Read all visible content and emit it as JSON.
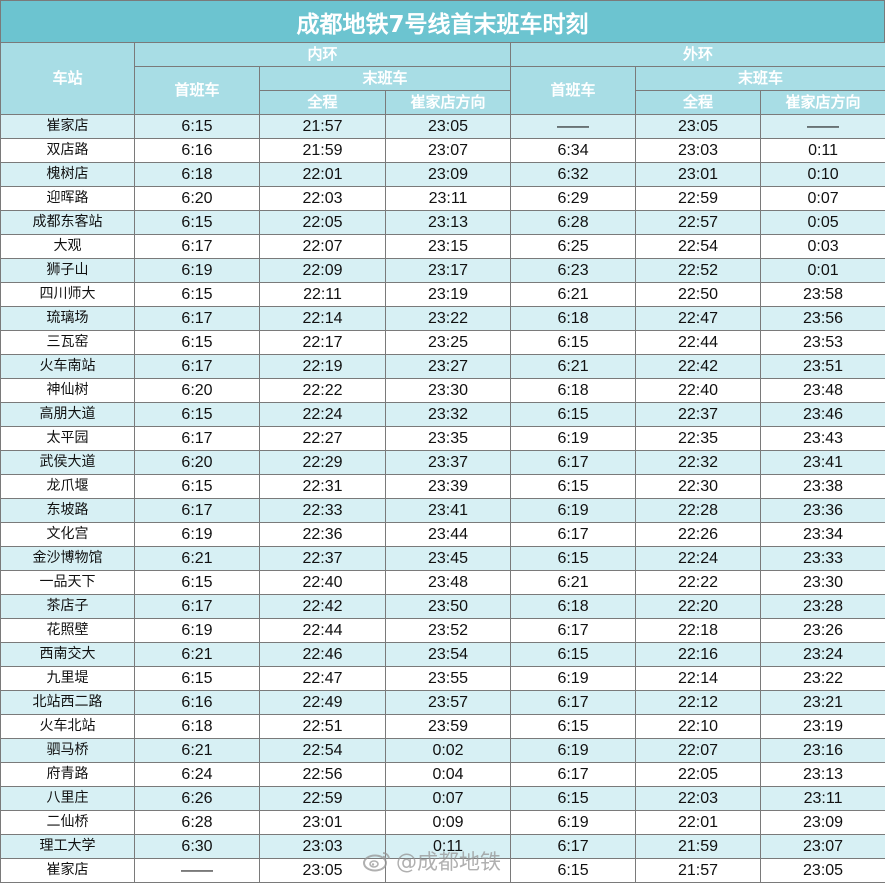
{
  "title": "成都地铁7号线首末班车时刻",
  "header": {
    "station": "车站",
    "inner": "内环",
    "outer": "外环",
    "first": "首班车",
    "last": "末班车",
    "full": "全程",
    "cuijiadian_dir": "崔家店方向"
  },
  "rows": [
    {
      "station": "崔家店",
      "in_first": "6:15",
      "in_full": "21:57",
      "in_dir": "23:05",
      "out_first": "——",
      "out_full": "23:05",
      "out_dir": "——"
    },
    {
      "station": "双店路",
      "in_first": "6:16",
      "in_full": "21:59",
      "in_dir": "23:07",
      "out_first": "6:34",
      "out_full": "23:03",
      "out_dir": "0:11"
    },
    {
      "station": "槐树店",
      "in_first": "6:18",
      "in_full": "22:01",
      "in_dir": "23:09",
      "out_first": "6:32",
      "out_full": "23:01",
      "out_dir": "0:10"
    },
    {
      "station": "迎晖路",
      "in_first": "6:20",
      "in_full": "22:03",
      "in_dir": "23:11",
      "out_first": "6:29",
      "out_full": "22:59",
      "out_dir": "0:07"
    },
    {
      "station": "成都东客站",
      "in_first": "6:15",
      "in_full": "22:05",
      "in_dir": "23:13",
      "out_first": "6:28",
      "out_full": "22:57",
      "out_dir": "0:05"
    },
    {
      "station": "大观",
      "in_first": "6:17",
      "in_full": "22:07",
      "in_dir": "23:15",
      "out_first": "6:25",
      "out_full": "22:54",
      "out_dir": "0:03"
    },
    {
      "station": "狮子山",
      "in_first": "6:19",
      "in_full": "22:09",
      "in_dir": "23:17",
      "out_first": "6:23",
      "out_full": "22:52",
      "out_dir": "0:01"
    },
    {
      "station": "四川师大",
      "in_first": "6:15",
      "in_full": "22:11",
      "in_dir": "23:19",
      "out_first": "6:21",
      "out_full": "22:50",
      "out_dir": "23:58"
    },
    {
      "station": "琉璃场",
      "in_first": "6:17",
      "in_full": "22:14",
      "in_dir": "23:22",
      "out_first": "6:18",
      "out_full": "22:47",
      "out_dir": "23:56"
    },
    {
      "station": "三瓦窑",
      "in_first": "6:15",
      "in_full": "22:17",
      "in_dir": "23:25",
      "out_first": "6:15",
      "out_full": "22:44",
      "out_dir": "23:53"
    },
    {
      "station": "火车南站",
      "in_first": "6:17",
      "in_full": "22:19",
      "in_dir": "23:27",
      "out_first": "6:21",
      "out_full": "22:42",
      "out_dir": "23:51"
    },
    {
      "station": "神仙树",
      "in_first": "6:20",
      "in_full": "22:22",
      "in_dir": "23:30",
      "out_first": "6:18",
      "out_full": "22:40",
      "out_dir": "23:48"
    },
    {
      "station": "高朋大道",
      "in_first": "6:15",
      "in_full": "22:24",
      "in_dir": "23:32",
      "out_first": "6:15",
      "out_full": "22:37",
      "out_dir": "23:46"
    },
    {
      "station": "太平园",
      "in_first": "6:17",
      "in_full": "22:27",
      "in_dir": "23:35",
      "out_first": "6:19",
      "out_full": "22:35",
      "out_dir": "23:43"
    },
    {
      "station": "武侯大道",
      "in_first": "6:20",
      "in_full": "22:29",
      "in_dir": "23:37",
      "out_first": "6:17",
      "out_full": "22:32",
      "out_dir": "23:41"
    },
    {
      "station": "龙爪堰",
      "in_first": "6:15",
      "in_full": "22:31",
      "in_dir": "23:39",
      "out_first": "6:15",
      "out_full": "22:30",
      "out_dir": "23:38"
    },
    {
      "station": "东坡路",
      "in_first": "6:17",
      "in_full": "22:33",
      "in_dir": "23:41",
      "out_first": "6:19",
      "out_full": "22:28",
      "out_dir": "23:36"
    },
    {
      "station": "文化宫",
      "in_first": "6:19",
      "in_full": "22:36",
      "in_dir": "23:44",
      "out_first": "6:17",
      "out_full": "22:26",
      "out_dir": "23:34"
    },
    {
      "station": "金沙博物馆",
      "in_first": "6:21",
      "in_full": "22:37",
      "in_dir": "23:45",
      "out_first": "6:15",
      "out_full": "22:24",
      "out_dir": "23:33"
    },
    {
      "station": "一品天下",
      "in_first": "6:15",
      "in_full": "22:40",
      "in_dir": "23:48",
      "out_first": "6:21",
      "out_full": "22:22",
      "out_dir": "23:30"
    },
    {
      "station": "茶店子",
      "in_first": "6:17",
      "in_full": "22:42",
      "in_dir": "23:50",
      "out_first": "6:18",
      "out_full": "22:20",
      "out_dir": "23:28"
    },
    {
      "station": "花照壁",
      "in_first": "6:19",
      "in_full": "22:44",
      "in_dir": "23:52",
      "out_first": "6:17",
      "out_full": "22:18",
      "out_dir": "23:26"
    },
    {
      "station": "西南交大",
      "in_first": "6:21",
      "in_full": "22:46",
      "in_dir": "23:54",
      "out_first": "6:15",
      "out_full": "22:16",
      "out_dir": "23:24"
    },
    {
      "station": "九里堤",
      "in_first": "6:15",
      "in_full": "22:47",
      "in_dir": "23:55",
      "out_first": "6:19",
      "out_full": "22:14",
      "out_dir": "23:22"
    },
    {
      "station": "北站西二路",
      "in_first": "6:16",
      "in_full": "22:49",
      "in_dir": "23:57",
      "out_first": "6:17",
      "out_full": "22:12",
      "out_dir": "23:21"
    },
    {
      "station": "火车北站",
      "in_first": "6:18",
      "in_full": "22:51",
      "in_dir": "23:59",
      "out_first": "6:15",
      "out_full": "22:10",
      "out_dir": "23:19"
    },
    {
      "station": "驷马桥",
      "in_first": "6:21",
      "in_full": "22:54",
      "in_dir": "0:02",
      "out_first": "6:19",
      "out_full": "22:07",
      "out_dir": "23:16"
    },
    {
      "station": "府青路",
      "in_first": "6:24",
      "in_full": "22:56",
      "in_dir": "0:04",
      "out_first": "6:17",
      "out_full": "22:05",
      "out_dir": "23:13"
    },
    {
      "station": "八里庄",
      "in_first": "6:26",
      "in_full": "22:59",
      "in_dir": "0:07",
      "out_first": "6:15",
      "out_full": "22:03",
      "out_dir": "23:11"
    },
    {
      "station": "二仙桥",
      "in_first": "6:28",
      "in_full": "23:01",
      "in_dir": "0:09",
      "out_first": "6:19",
      "out_full": "22:01",
      "out_dir": "23:09"
    },
    {
      "station": "理工大学",
      "in_first": "6:30",
      "in_full": "23:03",
      "in_dir": "0:11",
      "out_first": "6:17",
      "out_full": "21:59",
      "out_dir": "23:07"
    },
    {
      "station": "崔家店",
      "in_first": "——",
      "in_full": "23:05",
      "in_dir": "",
      "out_first": "6:15",
      "out_full": "21:57",
      "out_dir": "23:05"
    }
  ],
  "watermark": {
    "text": "@成都地铁",
    "icon": "weibo-logo-icon"
  }
}
